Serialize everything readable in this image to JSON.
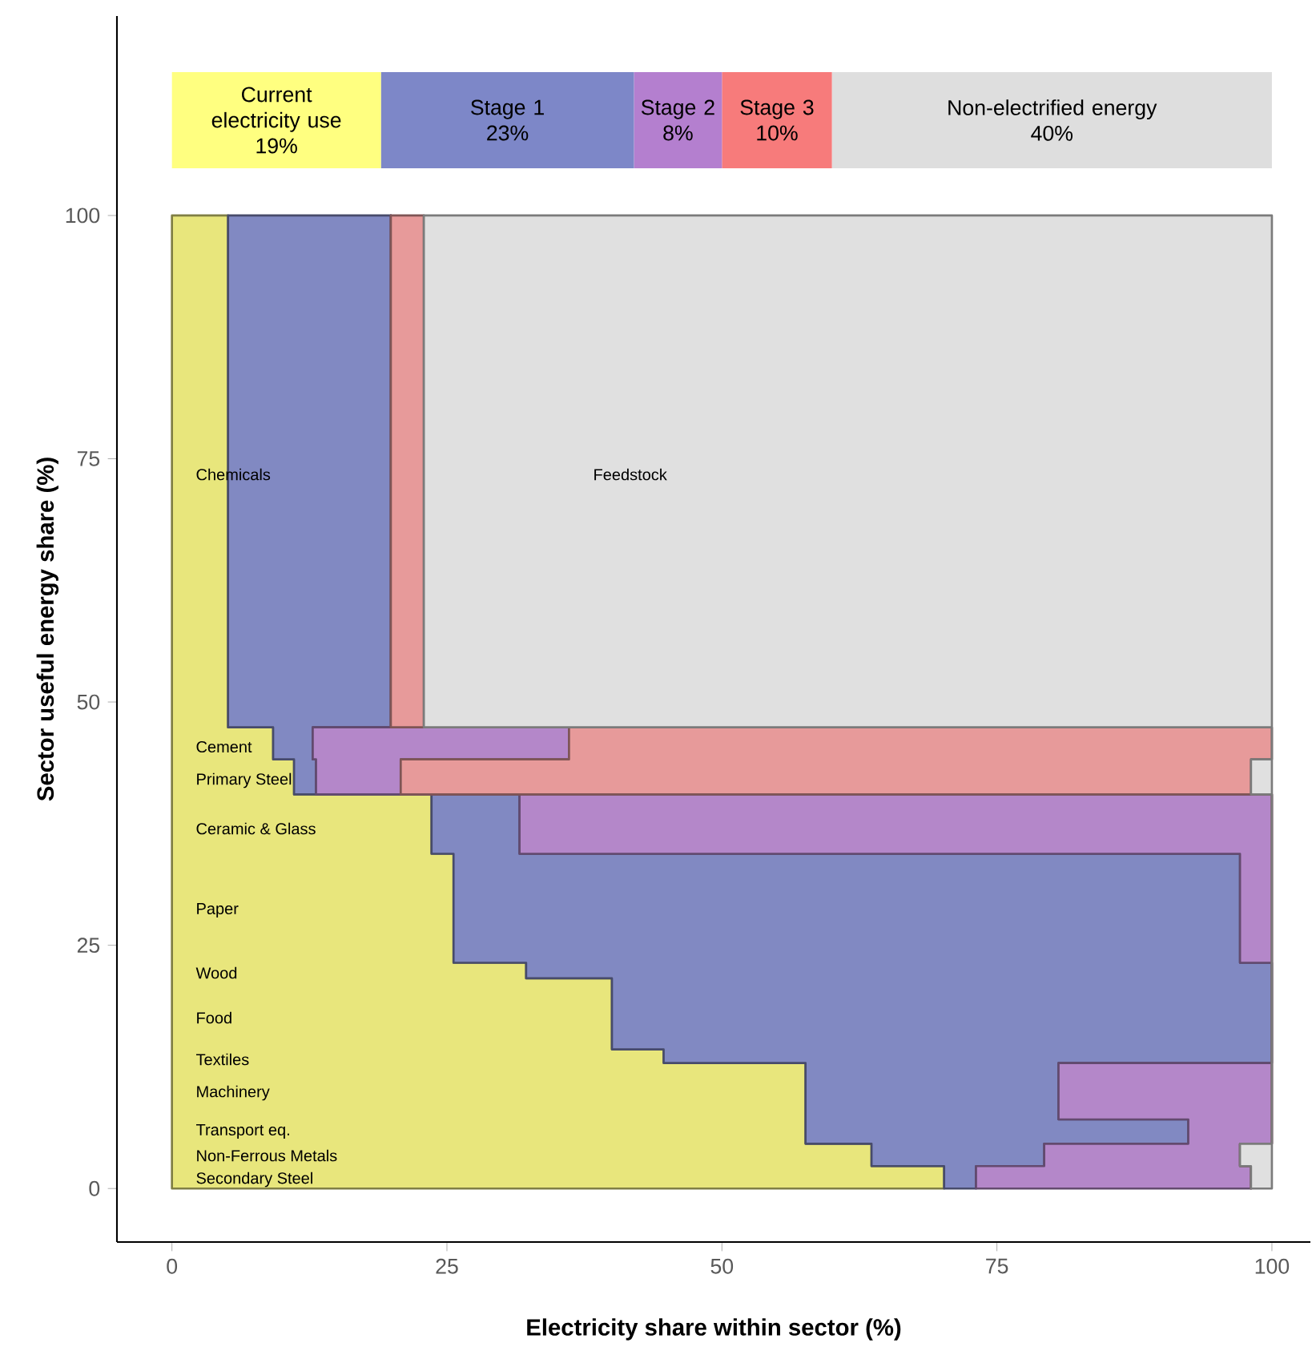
{
  "chart_data": [
    {
      "type": "bar",
      "orientation": "horizontal",
      "stacked": true,
      "categories": [
        null
      ],
      "xlim": [
        0,
        100
      ],
      "tick_labels": false,
      "series": [
        {
          "name": "Current electricity use",
          "color": "#ffff80",
          "values": [
            19
          ],
          "value_labels": [
            "19%"
          ]
        },
        {
          "name": "Stage 1",
          "color": "#7d87c8",
          "values": [
            23
          ],
          "value_labels": [
            "23%"
          ]
        },
        {
          "name": "Stage 2",
          "color": "#b47fcf",
          "values": [
            8
          ],
          "value_labels": [
            "8%"
          ]
        },
        {
          "name": "Stage 3",
          "color": "#f77b7b",
          "values": [
            10
          ],
          "value_labels": [
            "10%"
          ]
        },
        {
          "name": "Non-electrified energy",
          "color": "#dedede",
          "values": [
            40
          ],
          "value_labels": [
            "40%"
          ]
        }
      ]
    },
    {
      "type": "area",
      "orientation": "horizontal",
      "stacked": true,
      "xlim": [
        -5,
        103.5
      ],
      "ylim": [
        -5.5,
        120.5
      ],
      "xticks": [
        0,
        25,
        50,
        75,
        100
      ],
      "yticks": [
        0,
        25,
        50,
        75,
        100
      ],
      "xlabel": "Electricity share within sector (%)",
      "ylabel": "Sector useful energy share (%)",
      "x": [
        100,
        47.4,
        47.4,
        44.1,
        44.1,
        40.5,
        40.5,
        34.4,
        34.4,
        23.2,
        23.2,
        21.6,
        21.6,
        14.3,
        14.3,
        12.9,
        12.9,
        7.1,
        7.1,
        4.6,
        4.6,
        2.3,
        2.3,
        0
      ],
      "series": [
        {
          "color": "#e8e67c",
          "values": [
            5.1,
            5.1,
            9.2,
            9.2,
            11.1,
            11.1,
            23.6,
            23.6,
            25.6,
            25.6,
            32.2,
            32.2,
            40.0,
            40.0,
            44.7,
            44.7,
            57.6,
            57.6,
            57.6,
            57.6,
            63.6,
            63.6,
            70.2,
            70.2
          ]
        },
        {
          "color": "#8189c2",
          "values": [
            14.8,
            14.8,
            3.6,
            3.6,
            2.0,
            2.0,
            8.0,
            8.0,
            71.5,
            71.5,
            67.8,
            67.8,
            60.0,
            60.0,
            55.3,
            55.3,
            23.0,
            23.0,
            34.8,
            34.8,
            15.7,
            15.7,
            2.9,
            2.9
          ]
        },
        {
          "color": "#b487c9",
          "values": [
            0,
            0,
            23.3,
            23.3,
            7.7,
            7.7,
            68.4,
            68.4,
            2.9,
            2.9,
            0,
            0,
            0,
            0,
            0,
            0,
            19.4,
            19.4,
            7.6,
            7.6,
            17.8,
            17.8,
            25.0,
            25.0
          ]
        },
        {
          "color": "#e79a9a",
          "values": [
            3.0,
            3.0,
            63.9,
            63.9,
            77.3,
            77.3,
            0,
            0,
            0,
            0,
            0,
            0,
            0,
            0,
            0,
            0,
            0,
            0,
            0,
            0,
            0,
            0,
            0,
            0
          ]
        },
        {
          "color": "#e0e0e0",
          "values": [
            77.1,
            77.1,
            0,
            0,
            1.9,
            1.9,
            0,
            0,
            0,
            0,
            0,
            0,
            0,
            0,
            0,
            0,
            0,
            0,
            0,
            0,
            2.9,
            2.9,
            1.9,
            1.9
          ]
        }
      ],
      "annotations": [
        "Chemicals",
        "Feedstock",
        "Cement",
        "Primary Steel",
        "Ceramic  & Glass",
        "Paper",
        "Wood",
        "Food",
        "Textiles",
        "Machinery",
        "Transport eq.",
        "Non-Ferrous Metals",
        "Secondary Steel"
      ]
    }
  ]
}
